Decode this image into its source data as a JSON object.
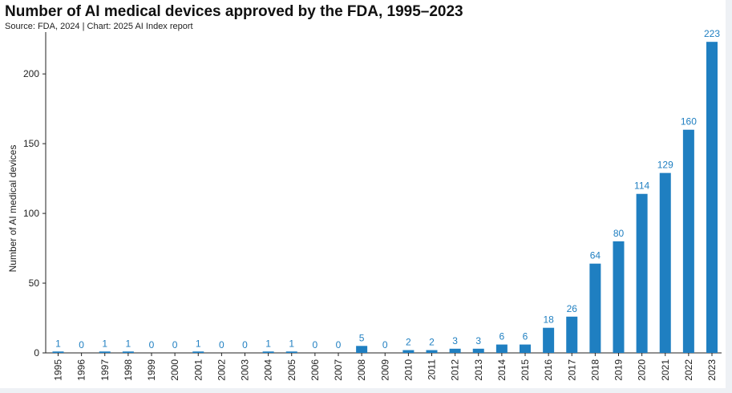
{
  "chart_data": {
    "type": "bar",
    "title": "Number of AI medical devices approved by the FDA, 1995–2023",
    "subtitle": "Source: FDA, 2024 | Chart: 2025 AI Index report",
    "xlabel": "",
    "ylabel": "Number of AI medical devices",
    "ylim": [
      0,
      230
    ],
    "yticks": [
      0,
      50,
      100,
      150,
      200
    ],
    "grid": false,
    "bar_color": "#1f7fc1",
    "label_color": "#1f7fc1",
    "categories": [
      "1995",
      "1996",
      "1997",
      "1998",
      "1999",
      "2000",
      "2001",
      "2002",
      "2003",
      "2004",
      "2005",
      "2006",
      "2007",
      "2008",
      "2009",
      "2010",
      "2011",
      "2012",
      "2013",
      "2014",
      "2015",
      "2016",
      "2017",
      "2018",
      "2019",
      "2020",
      "2021",
      "2022",
      "2023"
    ],
    "values": [
      1,
      0,
      1,
      1,
      0,
      0,
      1,
      0,
      0,
      1,
      1,
      0,
      0,
      5,
      0,
      2,
      2,
      3,
      3,
      6,
      6,
      18,
      26,
      64,
      80,
      114,
      129,
      160,
      223
    ]
  }
}
